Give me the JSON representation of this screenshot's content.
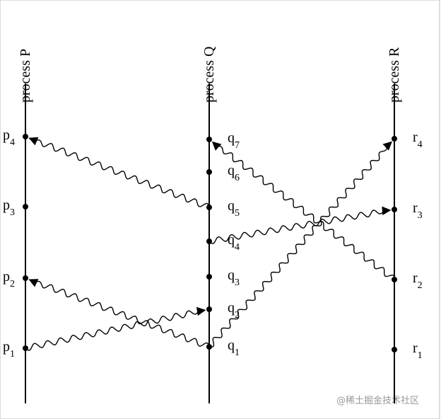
{
  "processes": [
    {
      "label": "process P",
      "events": [
        {
          "name": "p",
          "sub": "1"
        },
        {
          "name": "p",
          "sub": "2"
        },
        {
          "name": "p",
          "sub": "3"
        },
        {
          "name": "p",
          "sub": "4"
        }
      ]
    },
    {
      "label": "process Q",
      "events": [
        {
          "name": "q",
          "sub": "1"
        },
        {
          "name": "q",
          "sub": "2"
        },
        {
          "name": "q",
          "sub": "3"
        },
        {
          "name": "q",
          "sub": "4"
        },
        {
          "name": "q",
          "sub": "5"
        },
        {
          "name": "q",
          "sub": "6"
        },
        {
          "name": "q",
          "sub": "7"
        }
      ]
    },
    {
      "label": "process R",
      "events": [
        {
          "name": "r",
          "sub": "1"
        },
        {
          "name": "r",
          "sub": "2"
        },
        {
          "name": "r",
          "sub": "3"
        },
        {
          "name": "r",
          "sub": "4"
        }
      ]
    }
  ],
  "watermark": "@稀土掘金技术社区"
}
